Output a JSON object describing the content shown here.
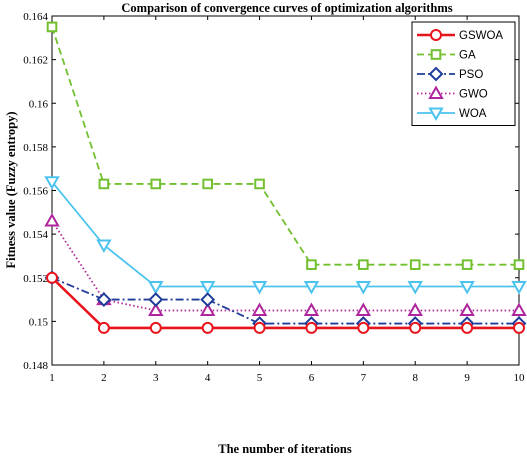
{
  "chart_data": {
    "type": "line",
    "title": "Comparison of convergence curves of optimization algorithms",
    "xlabel": "The number of iterations",
    "ylabel": "Fitness value (Fuzzy entropy)",
    "x": [
      1,
      2,
      3,
      4,
      5,
      6,
      7,
      8,
      9,
      10
    ],
    "xlim": [
      1,
      10
    ],
    "ylim": [
      0.148,
      0.164
    ],
    "xticks": [
      "1",
      "2",
      "3",
      "4",
      "5",
      "6",
      "7",
      "8",
      "9",
      "10"
    ],
    "yticks": [
      "0.148",
      "0.15",
      "0.152",
      "0.154",
      "0.156",
      "0.158",
      "0.16",
      "0.162",
      "0.164"
    ],
    "yticks_values": [
      0.148,
      0.15,
      0.152,
      0.154,
      0.156,
      0.158,
      0.16,
      0.162,
      0.164
    ],
    "grid": false,
    "legend_position": "top-right",
    "series": [
      {
        "name": "GSWOA",
        "color": "#e8141c",
        "marker": "circle",
        "line": "solid",
        "values": [
          0.152,
          0.1497,
          0.1497,
          0.1497,
          0.1497,
          0.1497,
          0.1497,
          0.1497,
          0.1497,
          0.1497
        ]
      },
      {
        "name": "GA",
        "color": "#72c02f",
        "marker": "square",
        "line": "dashed",
        "values": [
          0.1635,
          0.1563,
          0.1563,
          0.1563,
          0.1563,
          0.1526,
          0.1526,
          0.1526,
          0.1526,
          0.1526
        ]
      },
      {
        "name": "PSO",
        "color": "#1f3c9b",
        "marker": "diamond",
        "line": "dashdot",
        "values": [
          0.152,
          0.151,
          0.151,
          0.151,
          0.1499,
          0.1499,
          0.1499,
          0.1499,
          0.1499,
          0.1499
        ]
      },
      {
        "name": "GWO",
        "color": "#b0259c",
        "marker": "triangle-up",
        "line": "dotted",
        "values": [
          0.1546,
          0.151,
          0.1505,
          0.1505,
          0.1505,
          0.1505,
          0.1505,
          0.1505,
          0.1505,
          0.1505
        ]
      },
      {
        "name": "WOA",
        "color": "#4cc3ee",
        "marker": "triangle-down",
        "line": "solid",
        "values": [
          0.1564,
          0.1535,
          0.1516,
          0.1516,
          0.1516,
          0.1516,
          0.1516,
          0.1516,
          0.1516,
          0.1516
        ]
      }
    ]
  }
}
